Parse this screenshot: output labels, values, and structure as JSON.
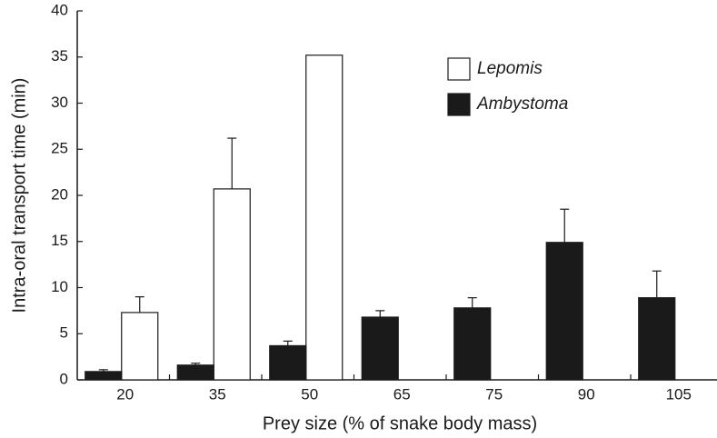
{
  "chart_data": {
    "type": "bar",
    "xlabel": "Prey size (% of snake body mass)",
    "ylabel": "Intra-oral transport time (min)",
    "categories": [
      "20",
      "35",
      "50",
      "65",
      "75",
      "90",
      "105"
    ],
    "series": [
      {
        "name": "Lepomis",
        "color": "#ffffff",
        "values": [
          7.3,
          20.7,
          35.2,
          null,
          null,
          null,
          null
        ],
        "errors": [
          1.7,
          5.5,
          null,
          null,
          null,
          null,
          null
        ]
      },
      {
        "name": "Ambystoma",
        "color": "#1a1a1a",
        "values": [
          0.9,
          1.6,
          3.7,
          6.8,
          7.8,
          14.9,
          8.9
        ],
        "errors": [
          0.2,
          0.2,
          0.5,
          0.7,
          1.1,
          3.6,
          2.9
        ]
      }
    ],
    "ylim": [
      0,
      40
    ],
    "yticks": [
      0,
      5,
      10,
      15,
      20,
      25,
      30,
      35,
      40
    ]
  }
}
